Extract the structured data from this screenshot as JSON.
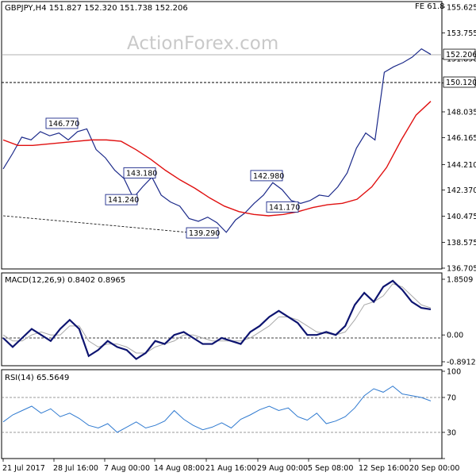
{
  "watermark": "ActionForex.com",
  "colors": {
    "candle": "#1c2a8a",
    "ma": "#e01010",
    "macd": "#0d1470",
    "signal": "#a8a8a8",
    "rsi": "#2f7ad0",
    "label_border": "#1c2a8a",
    "grid": "#cfcfcf"
  },
  "chart_data": [
    {
      "type": "candlestick",
      "header": "GBPJPY,H4  151.827 152.320 151.738 152.206",
      "fe_label": "FE 61.8",
      "yticks": [
        "155.625",
        "153.755",
        "151.890",
        "150.125",
        "148.035",
        "146.165",
        "144.210",
        "142.370",
        "140.475",
        "138.575",
        "136.705"
      ],
      "current_price": "152.206",
      "support_level": "150.120",
      "annotations": [
        "146.770",
        "143.180",
        "141.240",
        "139.290",
        "142.980",
        "141.170"
      ],
      "series": [
        {
          "name": "price",
          "values": [
            143.9,
            145.0,
            146.2,
            146.0,
            146.6,
            146.3,
            146.5,
            146.0,
            146.6,
            146.8,
            145.3,
            144.7,
            143.8,
            143.2,
            141.8,
            142.6,
            143.3,
            142.0,
            141.5,
            141.2,
            140.3,
            140.1,
            140.4,
            140.0,
            139.3,
            140.2,
            140.7,
            141.4,
            142.0,
            142.9,
            142.4,
            141.6,
            141.4,
            141.6,
            142.0,
            141.9,
            142.6,
            143.6,
            145.4,
            146.5,
            146.0,
            150.9,
            151.3,
            151.6,
            152.0,
            152.6,
            152.2
          ]
        },
        {
          "name": "moving-average",
          "values": [
            146.0,
            145.6,
            145.6,
            145.7,
            145.8,
            145.9,
            146.0,
            146.0,
            145.9,
            145.3,
            144.6,
            143.8,
            143.1,
            142.5,
            141.8,
            141.2,
            140.8,
            140.6,
            140.5,
            140.6,
            140.8,
            141.1,
            141.3,
            141.4,
            141.7,
            142.6,
            144.0,
            146.0,
            147.8,
            148.8
          ]
        }
      ]
    },
    {
      "type": "line",
      "title": "MACD(12,26,9) 0.8402 0.8965",
      "yticks": [
        "1.8509",
        "0.00",
        "-0.8912"
      ],
      "series": [
        {
          "name": "macd",
          "values": [
            -0.1,
            -0.4,
            -0.1,
            0.2,
            0.0,
            -0.2,
            0.2,
            0.5,
            0.2,
            -0.7,
            -0.5,
            -0.2,
            -0.4,
            -0.5,
            -0.8,
            -0.6,
            -0.2,
            -0.3,
            0.0,
            0.1,
            -0.1,
            -0.3,
            -0.3,
            -0.1,
            -0.2,
            -0.3,
            0.1,
            0.3,
            0.6,
            0.8,
            0.6,
            0.4,
            0.0,
            0.0,
            0.1,
            0.0,
            0.3,
            1.0,
            1.4,
            1.1,
            1.6,
            1.8,
            1.5,
            1.1,
            0.9,
            0.85
          ]
        },
        {
          "name": "signal",
          "values": [
            0.0,
            -0.2,
            -0.2,
            0.0,
            0.1,
            0.0,
            0.0,
            0.3,
            0.3,
            -0.2,
            -0.4,
            -0.3,
            -0.3,
            -0.4,
            -0.6,
            -0.6,
            -0.4,
            -0.3,
            -0.2,
            0.0,
            0.0,
            -0.1,
            -0.2,
            -0.2,
            -0.2,
            -0.2,
            -0.1,
            0.1,
            0.3,
            0.6,
            0.6,
            0.5,
            0.3,
            0.1,
            0.05,
            0.0,
            0.1,
            0.5,
            1.0,
            1.1,
            1.3,
            1.7,
            1.6,
            1.3,
            1.0,
            0.9
          ]
        }
      ]
    },
    {
      "type": "line",
      "title": "RSI(14) 65.5649",
      "yticks": [
        "100",
        "70",
        "30",
        "0"
      ],
      "series": [
        {
          "name": "rsi",
          "values": [
            42,
            50,
            55,
            60,
            52,
            57,
            48,
            52,
            46,
            38,
            35,
            40,
            30,
            36,
            42,
            35,
            38,
            43,
            55,
            45,
            38,
            33,
            36,
            41,
            35,
            45,
            50,
            56,
            60,
            55,
            58,
            48,
            44,
            52,
            40,
            43,
            48,
            58,
            72,
            80,
            76,
            83,
            74,
            72,
            70,
            66
          ]
        }
      ]
    }
  ],
  "xaxis": [
    "21 Jul 2017",
    "28 Jul 16:00",
    "7 Aug 00:00",
    "14 Aug 08:00",
    "21 Aug 16:00",
    "29 Aug 00:00",
    "5 Sep 08:00",
    "12 Sep 16:00",
    "20 Sep 00:00"
  ]
}
